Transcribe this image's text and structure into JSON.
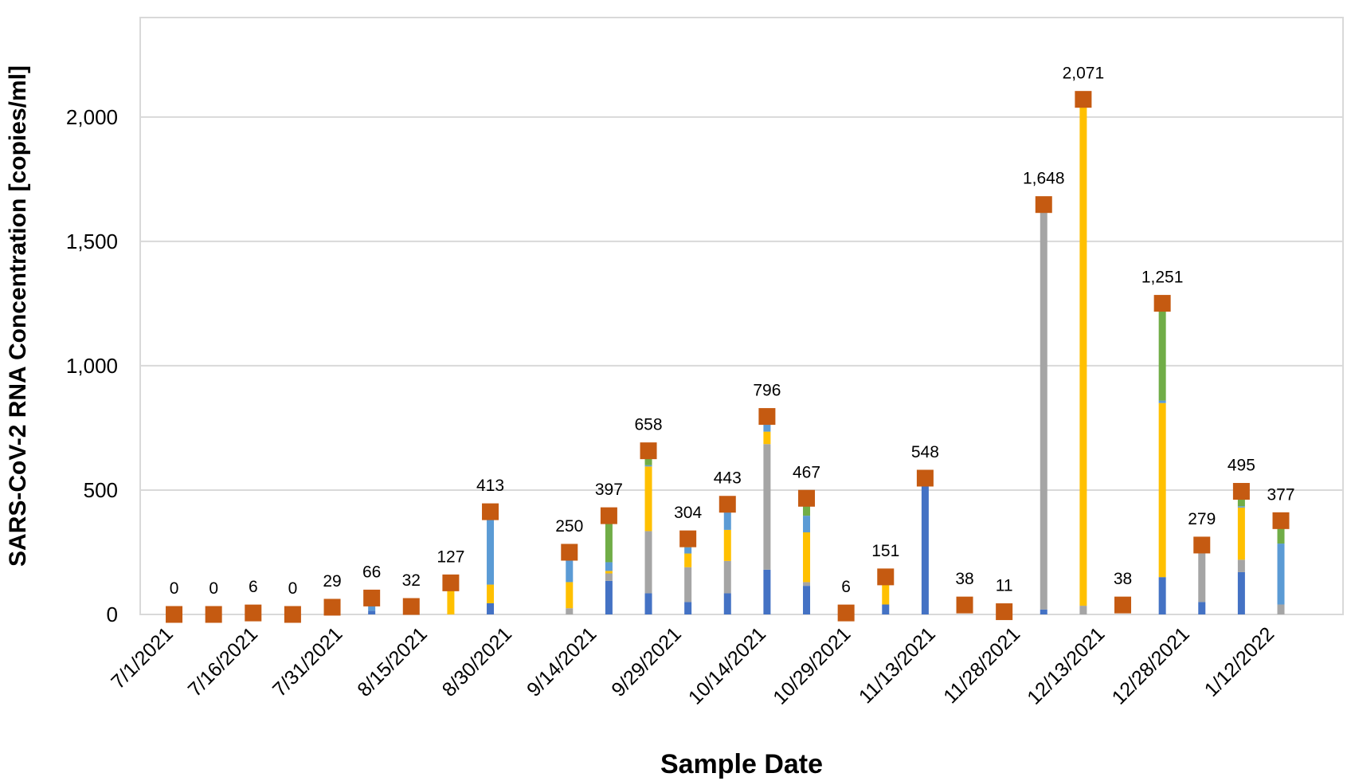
{
  "chart_data": {
    "type": "bar",
    "subtype": "stacked-bar-with-total-markers",
    "xlabel": "Sample Date",
    "ylabel": "SARS-CoV-2 RNA Concentration [copies/ml]",
    "ylim": [
      0,
      2400
    ],
    "yticks": [
      "0",
      "500",
      "1,000",
      "1,500",
      "2,000"
    ],
    "ytick_values": [
      0,
      500,
      1000,
      1500,
      2000
    ],
    "grid": true,
    "x_axis": {
      "type": "date",
      "min": "2021-06-25",
      "max": "2022-01-24",
      "tick_dates": [
        "2021-07-01",
        "2021-07-16",
        "2021-07-31",
        "2021-08-15",
        "2021-08-30",
        "2021-09-14",
        "2021-09-29",
        "2021-10-14",
        "2021-10-29",
        "2021-11-13",
        "2021-11-28",
        "2021-12-13",
        "2021-12-28",
        "2022-01-12"
      ],
      "tick_labels": [
        "7/1/2021",
        "7/16/2021",
        "7/31/2021",
        "8/15/2021",
        "8/30/2021",
        "9/14/2021",
        "9/29/2021",
        "10/14/2021",
        "10/29/2021",
        "11/13/2021",
        "11/28/2021",
        "12/13/2021",
        "12/28/2021",
        "1/12/2022"
      ]
    },
    "component_colors": [
      "#4472c4",
      "#a5a5a5",
      "#ffc000",
      "#5b9bd5",
      "#70ad47"
    ],
    "marker_color": "#c55a11",
    "samples": [
      {
        "date": "2021-07-01",
        "total": 0,
        "label": "0",
        "components": [
          0,
          0,
          0,
          0,
          0
        ]
      },
      {
        "date": "2021-07-08",
        "total": 0,
        "label": "0",
        "components": [
          0,
          0,
          0,
          0,
          0
        ]
      },
      {
        "date": "2021-07-15",
        "total": 6,
        "label": "6",
        "components": [
          0,
          0,
          0,
          0,
          0
        ]
      },
      {
        "date": "2021-07-22",
        "total": 0,
        "label": "0",
        "components": [
          0,
          0,
          0,
          0,
          0
        ]
      },
      {
        "date": "2021-07-29",
        "total": 29,
        "label": "29",
        "components": [
          0,
          0,
          0,
          0,
          0
        ]
      },
      {
        "date": "2021-08-05",
        "total": 66,
        "label": "66",
        "components": [
          15,
          0,
          0,
          51,
          0
        ]
      },
      {
        "date": "2021-08-12",
        "total": 32,
        "label": "32",
        "components": [
          0,
          0,
          0,
          0,
          0
        ]
      },
      {
        "date": "2021-08-19",
        "total": 127,
        "label": "127",
        "components": [
          0,
          0,
          127,
          0,
          0
        ]
      },
      {
        "date": "2021-08-26",
        "total": 413,
        "label": "413",
        "components": [
          45,
          0,
          75,
          293,
          0
        ]
      },
      {
        "date": "2021-09-09",
        "total": 250,
        "label": "250",
        "components": [
          0,
          25,
          105,
          120,
          0
        ]
      },
      {
        "date": "2021-09-16",
        "total": 397,
        "label": "397",
        "components": [
          135,
          30,
          10,
          35,
          187
        ]
      },
      {
        "date": "2021-09-23",
        "total": 658,
        "label": "658",
        "components": [
          85,
          250,
          260,
          5,
          58
        ]
      },
      {
        "date": "2021-09-30",
        "total": 304,
        "label": "304",
        "components": [
          50,
          140,
          55,
          25,
          34
        ]
      },
      {
        "date": "2021-10-07",
        "total": 443,
        "label": "443",
        "components": [
          85,
          130,
          125,
          103,
          0
        ]
      },
      {
        "date": "2021-10-14",
        "total": 796,
        "label": "796",
        "components": [
          180,
          505,
          50,
          61,
          0
        ]
      },
      {
        "date": "2021-10-21",
        "total": 467,
        "label": "467",
        "components": [
          115,
          15,
          200,
          67,
          70
        ]
      },
      {
        "date": "2021-10-28",
        "total": 6,
        "label": "6",
        "components": [
          0,
          0,
          0,
          0,
          0
        ]
      },
      {
        "date": "2021-11-04",
        "total": 151,
        "label": "151",
        "components": [
          40,
          0,
          111,
          0,
          0
        ]
      },
      {
        "date": "2021-11-11",
        "total": 548,
        "label": "548",
        "components": [
          548,
          0,
          0,
          0,
          0
        ]
      },
      {
        "date": "2021-11-18",
        "total": 38,
        "label": "38",
        "components": [
          0,
          0,
          0,
          0,
          0
        ]
      },
      {
        "date": "2021-11-25",
        "total": 11,
        "label": "11",
        "components": [
          0,
          0,
          0,
          0,
          0
        ]
      },
      {
        "date": "2021-12-02",
        "total": 1648,
        "label": "1,648",
        "components": [
          20,
          1628,
          0,
          0,
          0
        ]
      },
      {
        "date": "2021-12-09",
        "total": 2071,
        "label": "2,071",
        "components": [
          0,
          35,
          2036,
          0,
          0
        ]
      },
      {
        "date": "2021-12-16",
        "total": 38,
        "label": "38",
        "components": [
          0,
          0,
          0,
          0,
          0
        ]
      },
      {
        "date": "2021-12-23",
        "total": 1251,
        "label": "1,251",
        "components": [
          150,
          0,
          700,
          10,
          391
        ]
      },
      {
        "date": "2021-12-30",
        "total": 279,
        "label": "279",
        "components": [
          50,
          229,
          0,
          0,
          0
        ]
      },
      {
        "date": "2022-01-06",
        "total": 495,
        "label": "495",
        "components": [
          170,
          50,
          210,
          5,
          60
        ]
      },
      {
        "date": "2022-01-13",
        "total": 377,
        "label": "377",
        "components": [
          0,
          40,
          0,
          245,
          92
        ]
      }
    ]
  }
}
